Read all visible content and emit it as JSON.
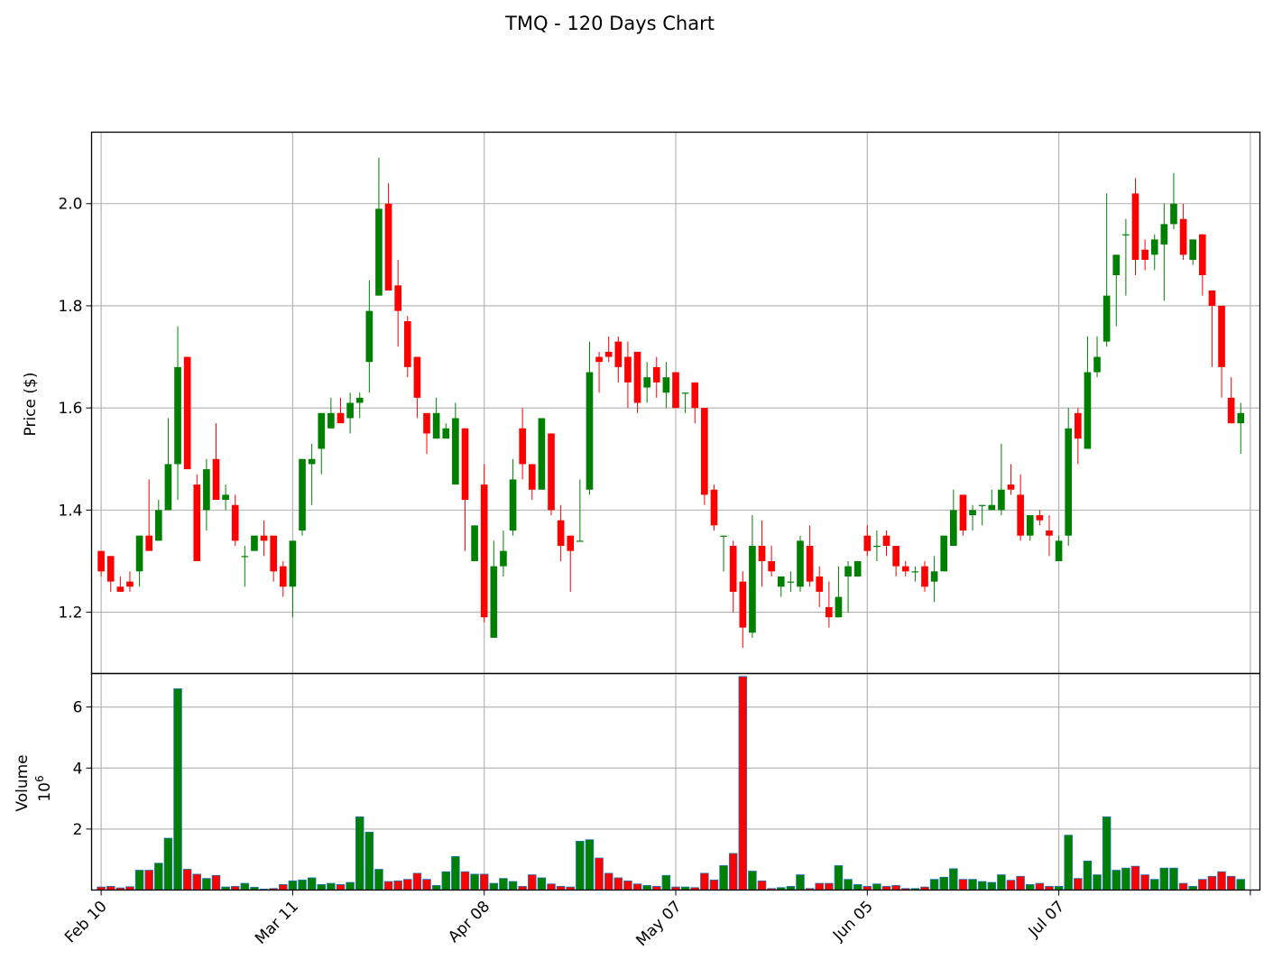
{
  "chart_data": {
    "type": "candlestick",
    "title": "TMQ - 120 Days Chart",
    "price_panel": {
      "ylabel": "Price ($)",
      "ylim": [
        1.08,
        2.14
      ],
      "yticks": [
        1.2,
        1.4,
        1.6,
        1.8,
        2.0
      ],
      "ytick_labels": [
        "1.2",
        "1.4",
        "1.6",
        "1.8",
        "2.0"
      ],
      "grid": true
    },
    "volume_panel": {
      "ylabel": "Volume",
      "unit_label": "10",
      "unit_exponent": "6",
      "ylim": [
        0,
        7.1
      ],
      "yticks": [
        2,
        4,
        6
      ],
      "ytick_labels": [
        "2",
        "4",
        "6"
      ],
      "grid": true
    },
    "xlim": [
      -1,
      121
    ],
    "xticks": [
      0,
      20,
      40,
      60,
      80,
      100,
      120
    ],
    "xtick_labels": [
      "Feb 10",
      "Mar 11",
      "Apr 08",
      "May 07",
      "Jun 05",
      "Jul 07",
      ""
    ],
    "colors": {
      "up": "#008000",
      "down": "#ff0000",
      "volume_edge": "#1f77b4",
      "grid": "#b0b0b0"
    },
    "ohlcv": [
      [
        1.32,
        1.32,
        1.27,
        1.28,
        0.1
      ],
      [
        1.31,
        1.31,
        1.24,
        1.26,
        0.12
      ],
      [
        1.25,
        1.27,
        1.24,
        1.24,
        0.07
      ],
      [
        1.26,
        1.28,
        1.24,
        1.25,
        0.11
      ],
      [
        1.28,
        1.35,
        1.25,
        1.35,
        0.65
      ],
      [
        1.35,
        1.46,
        1.32,
        1.32,
        0.65
      ],
      [
        1.34,
        1.42,
        1.34,
        1.4,
        0.88
      ],
      [
        1.4,
        1.58,
        1.4,
        1.49,
        1.7
      ],
      [
        1.49,
        1.76,
        1.42,
        1.68,
        6.6
      ],
      [
        1.7,
        1.7,
        1.48,
        1.48,
        0.68
      ],
      [
        1.45,
        1.47,
        1.3,
        1.3,
        0.52
      ],
      [
        1.4,
        1.5,
        1.36,
        1.48,
        0.38
      ],
      [
        1.5,
        1.57,
        1.42,
        1.42,
        0.48
      ],
      [
        1.42,
        1.45,
        1.4,
        1.43,
        0.1
      ],
      [
        1.41,
        1.43,
        1.33,
        1.34,
        0.12
      ],
      [
        1.31,
        1.33,
        1.25,
        1.31,
        0.22
      ],
      [
        1.32,
        1.35,
        1.32,
        1.35,
        0.09
      ],
      [
        1.35,
        1.38,
        1.31,
        1.34,
        0.03
      ],
      [
        1.35,
        1.35,
        1.26,
        1.28,
        0.05
      ],
      [
        1.29,
        1.3,
        1.23,
        1.25,
        0.18
      ],
      [
        1.25,
        1.34,
        1.19,
        1.34,
        0.3
      ],
      [
        1.36,
        1.5,
        1.35,
        1.5,
        0.33
      ],
      [
        1.49,
        1.53,
        1.41,
        1.5,
        0.4
      ],
      [
        1.52,
        1.59,
        1.47,
        1.59,
        0.18
      ],
      [
        1.56,
        1.62,
        1.56,
        1.59,
        0.22
      ],
      [
        1.59,
        1.62,
        1.57,
        1.57,
        0.18
      ],
      [
        1.58,
        1.63,
        1.55,
        1.61,
        0.25
      ],
      [
        1.61,
        1.63,
        1.58,
        1.62,
        2.4
      ],
      [
        1.69,
        1.85,
        1.63,
        1.79,
        1.9
      ],
      [
        1.82,
        2.09,
        1.82,
        1.99,
        0.68
      ],
      [
        2.0,
        2.04,
        1.83,
        1.83,
        0.28
      ],
      [
        1.84,
        1.89,
        1.72,
        1.79,
        0.3
      ],
      [
        1.77,
        1.78,
        1.66,
        1.68,
        0.35
      ],
      [
        1.7,
        1.7,
        1.58,
        1.62,
        0.55
      ],
      [
        1.59,
        1.59,
        1.51,
        1.55,
        0.35
      ],
      [
        1.54,
        1.62,
        1.54,
        1.59,
        0.15
      ],
      [
        1.54,
        1.57,
        1.54,
        1.56,
        0.6
      ],
      [
        1.45,
        1.61,
        1.45,
        1.58,
        1.1
      ],
      [
        1.56,
        1.56,
        1.32,
        1.42,
        0.6
      ],
      [
        1.3,
        1.37,
        1.3,
        1.37,
        0.52
      ],
      [
        1.45,
        1.49,
        1.18,
        1.19,
        0.52
      ],
      [
        1.15,
        1.34,
        1.15,
        1.29,
        0.22
      ],
      [
        1.29,
        1.36,
        1.27,
        1.32,
        0.38
      ],
      [
        1.36,
        1.5,
        1.35,
        1.46,
        0.28
      ],
      [
        1.56,
        1.6,
        1.46,
        1.49,
        0.12
      ],
      [
        1.49,
        1.49,
        1.42,
        1.44,
        0.5
      ],
      [
        1.44,
        1.58,
        1.44,
        1.58,
        0.4
      ],
      [
        1.55,
        1.55,
        1.39,
        1.4,
        0.2
      ],
      [
        1.38,
        1.41,
        1.3,
        1.33,
        0.12
      ],
      [
        1.35,
        1.35,
        1.24,
        1.32,
        0.1
      ],
      [
        1.34,
        1.46,
        1.34,
        1.34,
        1.6
      ],
      [
        1.44,
        1.73,
        1.43,
        1.67,
        1.65
      ],
      [
        1.7,
        1.71,
        1.63,
        1.69,
        1.05
      ],
      [
        1.71,
        1.74,
        1.69,
        1.7,
        0.55
      ],
      [
        1.73,
        1.74,
        1.65,
        1.68,
        0.4
      ],
      [
        1.7,
        1.73,
        1.6,
        1.65,
        0.3
      ],
      [
        1.71,
        1.71,
        1.59,
        1.61,
        0.2
      ],
      [
        1.64,
        1.69,
        1.61,
        1.66,
        0.15
      ],
      [
        1.68,
        1.7,
        1.62,
        1.65,
        0.12
      ],
      [
        1.63,
        1.69,
        1.6,
        1.66,
        0.48
      ],
      [
        1.67,
        1.67,
        1.6,
        1.6,
        0.1
      ],
      [
        1.63,
        1.63,
        1.59,
        1.63,
        0.1
      ],
      [
        1.65,
        1.65,
        1.57,
        1.6,
        0.08
      ],
      [
        1.6,
        1.6,
        1.41,
        1.43,
        0.55
      ],
      [
        1.44,
        1.45,
        1.36,
        1.37,
        0.33
      ],
      [
        1.35,
        1.35,
        1.28,
        1.35,
        0.8
      ],
      [
        1.33,
        1.34,
        1.2,
        1.24,
        1.2
      ],
      [
        1.26,
        1.28,
        1.13,
        1.17,
        7.0
      ],
      [
        1.16,
        1.39,
        1.15,
        1.33,
        0.62
      ],
      [
        1.33,
        1.38,
        1.25,
        1.3,
        0.3
      ],
      [
        1.3,
        1.33,
        1.27,
        1.28,
        0.05
      ],
      [
        1.25,
        1.27,
        1.23,
        1.27,
        0.08
      ],
      [
        1.26,
        1.28,
        1.24,
        1.26,
        0.12
      ],
      [
        1.25,
        1.35,
        1.24,
        1.34,
        0.5
      ],
      [
        1.33,
        1.37,
        1.25,
        1.26,
        0.05
      ],
      [
        1.27,
        1.29,
        1.21,
        1.24,
        0.22
      ],
      [
        1.21,
        1.26,
        1.17,
        1.19,
        0.22
      ],
      [
        1.19,
        1.29,
        1.19,
        1.23,
        0.8
      ],
      [
        1.27,
        1.3,
        1.2,
        1.29,
        0.35
      ],
      [
        1.27,
        1.3,
        1.27,
        1.3,
        0.18
      ],
      [
        1.35,
        1.37,
        1.31,
        1.32,
        0.12
      ],
      [
        1.33,
        1.36,
        1.3,
        1.33,
        0.2
      ],
      [
        1.35,
        1.36,
        1.31,
        1.33,
        0.12
      ],
      [
        1.33,
        1.33,
        1.27,
        1.29,
        0.15
      ],
      [
        1.29,
        1.3,
        1.27,
        1.28,
        0.05
      ],
      [
        1.28,
        1.29,
        1.26,
        1.28,
        0.05
      ],
      [
        1.29,
        1.3,
        1.24,
        1.25,
        0.1
      ],
      [
        1.26,
        1.31,
        1.22,
        1.28,
        0.35
      ],
      [
        1.28,
        1.35,
        1.28,
        1.35,
        0.42
      ],
      [
        1.33,
        1.44,
        1.33,
        1.4,
        0.7
      ],
      [
        1.43,
        1.43,
        1.35,
        1.36,
        0.35
      ],
      [
        1.39,
        1.41,
        1.36,
        1.4,
        0.35
      ],
      [
        1.41,
        1.41,
        1.37,
        1.41,
        0.28
      ],
      [
        1.4,
        1.44,
        1.4,
        1.41,
        0.25
      ],
      [
        1.4,
        1.53,
        1.39,
        1.44,
        0.5
      ],
      [
        1.45,
        1.49,
        1.43,
        1.44,
        0.32
      ],
      [
        1.43,
        1.47,
        1.34,
        1.35,
        0.45
      ],
      [
        1.35,
        1.39,
        1.34,
        1.39,
        0.18
      ],
      [
        1.39,
        1.4,
        1.37,
        1.38,
        0.22
      ],
      [
        1.36,
        1.39,
        1.31,
        1.35,
        0.12
      ],
      [
        1.3,
        1.35,
        1.3,
        1.34,
        0.12
      ],
      [
        1.35,
        1.6,
        1.33,
        1.56,
        1.8
      ],
      [
        1.59,
        1.6,
        1.49,
        1.54,
        0.38
      ],
      [
        1.52,
        1.74,
        1.52,
        1.67,
        0.95
      ],
      [
        1.67,
        1.74,
        1.66,
        1.7,
        0.5
      ],
      [
        1.73,
        2.02,
        1.72,
        1.82,
        2.4
      ],
      [
        1.86,
        1.9,
        1.76,
        1.9,
        0.65
      ],
      [
        1.94,
        1.97,
        1.82,
        1.94,
        0.72
      ],
      [
        2.02,
        2.05,
        1.86,
        1.89,
        0.78
      ],
      [
        1.91,
        1.93,
        1.87,
        1.89,
        0.5
      ],
      [
        1.9,
        1.94,
        1.87,
        1.93,
        0.35
      ],
      [
        1.92,
        2.0,
        1.81,
        1.96,
        0.72
      ],
      [
        1.96,
        2.06,
        1.95,
        2.0,
        0.72
      ],
      [
        1.97,
        2.0,
        1.89,
        1.9,
        0.22
      ],
      [
        1.89,
        1.93,
        1.88,
        1.93,
        0.12
      ],
      [
        1.94,
        1.94,
        1.82,
        1.86,
        0.35
      ],
      [
        1.83,
        1.83,
        1.68,
        1.8,
        0.45
      ],
      [
        1.8,
        1.8,
        1.62,
        1.68,
        0.6
      ],
      [
        1.62,
        1.66,
        1.57,
        1.57,
        0.45
      ],
      [
        1.57,
        1.61,
        1.51,
        1.59,
        0.35
      ]
    ]
  }
}
